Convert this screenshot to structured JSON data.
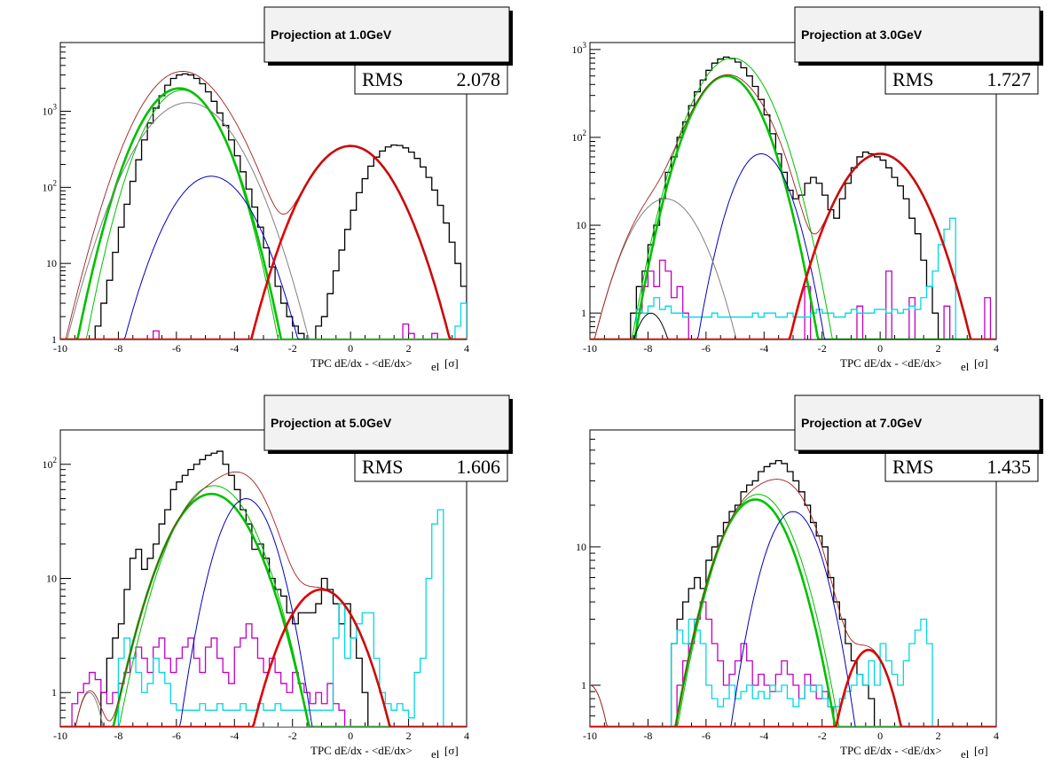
{
  "colors": {
    "data_hist": "#000000",
    "magenta_hist": "#c000c0",
    "cyan_hist": "#00d8e0",
    "total_fit": "#a02020",
    "electron_fit": "#e00000",
    "pion_fit": "#00c000",
    "kaon_fit": "#0000c0",
    "proton_fit": "#808080",
    "muon_fit": "#000000"
  },
  "xlabel_main": "TPC dE/dx - <dE/dx>",
  "xlabel_sub": "el",
  "xlabel_unit": "[σ]",
  "stats_label": "RMS",
  "chart_data": [
    {
      "type": "histogram",
      "title": "Projection at 1.0GeV",
      "rms": "2.078",
      "xlim": [
        -10,
        4
      ],
      "ylim": [
        1,
        8000
      ],
      "log_y": true,
      "xticks": [
        "-10",
        "-8",
        "-6",
        "-4",
        "-2",
        "0",
        "2",
        "4"
      ],
      "yticks": [
        {
          "v": 1,
          "label": "1"
        },
        {
          "v": 10,
          "label": "10"
        },
        {
          "v": 100,
          "label": "10^2"
        },
        {
          "v": 1000,
          "label": "10^3"
        }
      ],
      "fits": [
        {
          "name": "pion",
          "kind": "pion",
          "amp": 2000,
          "mu": -5.9,
          "sigma": 0.9,
          "thick": true
        },
        {
          "name": "pion2",
          "kind": "pion",
          "amp": 1900,
          "mu": -5.8,
          "sigma": 0.85,
          "thick": false
        },
        {
          "name": "kaon",
          "kind": "kaon",
          "amp": 140,
          "mu": -4.8,
          "sigma": 0.95
        },
        {
          "name": "proton",
          "kind": "proton",
          "amp": 1300,
          "mu": -5.6,
          "sigma": 1.1
        },
        {
          "name": "electron",
          "kind": "electron",
          "amp": 350,
          "mu": 0.0,
          "sigma": 1.0,
          "thick": true
        }
      ],
      "hist": [
        {
          "kind": "data_hist",
          "start": -8.8,
          "width": 0.2,
          "values": [
            1.5,
            3,
            6,
            14,
            30,
            60,
            120,
            230,
            420,
            700,
            1100,
            1600,
            2200,
            2700,
            3000,
            3100,
            3000,
            2700,
            2300,
            1800,
            1350,
            950,
            650,
            420,
            260,
            160,
            95,
            55,
            30,
            16,
            9,
            5,
            3,
            2,
            1.5,
            1.2,
            1,
            1,
            1.5,
            2,
            4,
            8,
            15,
            28,
            50,
            85,
            130,
            190,
            250,
            300,
            340,
            360,
            355,
            330,
            290,
            240,
            185,
            135,
            92,
            58,
            34,
            19,
            10,
            5,
            3,
            1.5
          ]
        },
        {
          "kind": "magenta_hist",
          "start": -7.4,
          "width": 0.2,
          "values": [
            0,
            0,
            0,
            1.3,
            0,
            0,
            0,
            0,
            0,
            0,
            0,
            0,
            0,
            0,
            0,
            0,
            0,
            0,
            0,
            0,
            0,
            0,
            0,
            0,
            0,
            0,
            0,
            0,
            0,
            0,
            0,
            0,
            0,
            0,
            0,
            0,
            0,
            0,
            0,
            0,
            0,
            0,
            0,
            0,
            0,
            0,
            1.6,
            1.2,
            0,
            0,
            0,
            1.2,
            0,
            0,
            0,
            0,
            0,
            0
          ]
        },
        {
          "kind": "cyan_hist",
          "start": 2.0,
          "width": 0.2,
          "values": [
            0,
            0,
            0,
            0,
            0,
            0,
            0,
            0,
            1.5,
            3
          ]
        }
      ]
    },
    {
      "type": "histogram",
      "title": "Projection at 3.0GeV",
      "rms": "1.727",
      "xlim": [
        -10,
        4
      ],
      "ylim": [
        0.5,
        1200
      ],
      "log_y": true,
      "xticks": [
        "-10",
        "-8",
        "-6",
        "-4",
        "-2",
        "0",
        "2",
        "4"
      ],
      "yticks": [
        {
          "v": 1,
          "label": "1"
        },
        {
          "v": 10,
          "label": "10"
        },
        {
          "v": 100,
          "label": "10^2"
        },
        {
          "v": 1000,
          "label": "10^3"
        }
      ],
      "fits": [
        {
          "name": "pion",
          "kind": "pion",
          "amp": 500,
          "mu": -5.3,
          "sigma": 0.85,
          "thick": true
        },
        {
          "name": "pion2",
          "kind": "pion",
          "amp": 800,
          "mu": -5.1,
          "sigma": 0.9,
          "thick": false
        },
        {
          "name": "kaon",
          "kind": "kaon",
          "amp": 65,
          "mu": -4.1,
          "sigma": 0.7
        },
        {
          "name": "proton",
          "kind": "proton",
          "amp": 20,
          "mu": -7.4,
          "sigma": 0.9
        },
        {
          "name": "muon",
          "kind": "muon",
          "amp": 1.0,
          "mu": -7.9,
          "sigma": 0.5
        },
        {
          "name": "electron",
          "kind": "electron",
          "amp": 65,
          "mu": 0.0,
          "sigma": 1.0,
          "thick": true
        }
      ],
      "hist": [
        {
          "kind": "data_hist",
          "start": -8.6,
          "width": 0.2,
          "values": [
            1,
            2,
            3,
            6,
            10,
            20,
            40,
            60,
            100,
            150,
            230,
            330,
            450,
            580,
            700,
            780,
            820,
            790,
            720,
            620,
            500,
            380,
            270,
            180,
            110,
            65,
            40,
            25,
            20,
            22,
            30,
            35,
            30,
            22,
            15,
            12,
            20,
            30,
            45,
            60,
            68,
            65,
            60,
            55,
            45,
            35,
            28,
            20,
            12,
            8,
            4,
            2,
            1
          ]
        },
        {
          "kind": "magenta_hist",
          "start": -8.4,
          "width": 0.2,
          "values": [
            1,
            2,
            3,
            2,
            4,
            3,
            1.5,
            2,
            1,
            0,
            0,
            0,
            0,
            0,
            0,
            0,
            0,
            0,
            0,
            0,
            0,
            0,
            0,
            0,
            0,
            0,
            0,
            0,
            0,
            2,
            0,
            0,
            0,
            0,
            0,
            0,
            0,
            0,
            1.2,
            0,
            0,
            0,
            0,
            3,
            0,
            0,
            0,
            1.5,
            0,
            0,
            0,
            0,
            0,
            1.2,
            0,
            0,
            0,
            0,
            0,
            0,
            1.5,
            0,
            0,
            2
          ]
        },
        {
          "kind": "cyan_hist",
          "start": -8.4,
          "width": 0.2,
          "values": [
            1.1,
            1.0,
            1.2,
            1.5,
            1.1,
            1.2,
            1.0,
            1.0,
            0.9,
            0.9,
            0.9,
            0.9,
            0.9,
            1.0,
            0.9,
            0.9,
            0.9,
            0.9,
            0.9,
            0.9,
            1.0,
            0.9,
            1.0,
            1.0,
            0.9,
            0.9,
            1.0,
            0.9,
            0.9,
            0.9,
            1.0,
            1.1,
            1.0,
            1.0,
            0.9,
            0.9,
            1.0,
            1.1,
            1.0,
            1.0,
            1.0,
            1.1,
            1.1,
            1.0,
            1.1,
            1.0,
            1.1,
            1.2,
            1.1,
            1.5,
            2,
            3,
            6,
            9,
            12
          ]
        }
      ]
    },
    {
      "type": "histogram",
      "title": "Projection at 5.0GeV",
      "rms": "1.606",
      "xlim": [
        -10,
        4
      ],
      "ylim": [
        0.5,
        200
      ],
      "log_y": true,
      "xticks": [
        "-10",
        "-8",
        "-6",
        "-4",
        "-2",
        "0",
        "2",
        "4"
      ],
      "yticks": [
        {
          "v": 1,
          "label": "1"
        },
        {
          "v": 10,
          "label": "10"
        },
        {
          "v": 100,
          "label": "10^2"
        }
      ],
      "fits": [
        {
          "name": "pion",
          "kind": "pion",
          "amp": 55,
          "mu": -4.8,
          "sigma": 1.1,
          "thick": true
        },
        {
          "name": "pion2",
          "kind": "pion",
          "amp": 65,
          "mu": -4.7,
          "sigma": 1.05,
          "thick": false
        },
        {
          "name": "kaon",
          "kind": "kaon",
          "amp": 50,
          "mu": -3.6,
          "sigma": 0.75
        },
        {
          "name": "proton",
          "kind": "proton",
          "amp": 1.0,
          "mu": -9.0,
          "sigma": 0.4
        },
        {
          "name": "electron",
          "kind": "electron",
          "amp": 8,
          "mu": -1.0,
          "sigma": 1.0,
          "thick": true
        }
      ],
      "hist": [
        {
          "kind": "data_hist",
          "start": -8.6,
          "width": 0.2,
          "values": [
            1,
            2,
            3,
            4,
            8,
            15,
            18,
            12,
            15,
            20,
            30,
            40,
            60,
            70,
            80,
            90,
            100,
            110,
            120,
            125,
            130,
            100,
            80,
            60,
            40,
            30,
            18,
            20,
            15,
            10,
            8,
            7,
            5,
            4,
            5,
            5,
            5,
            6,
            10,
            8,
            6,
            4,
            6,
            3,
            2,
            1
          ]
        },
        {
          "kind": "magenta_hist",
          "start": -9.6,
          "width": 0.2,
          "values": [
            0.8,
            1,
            1.2,
            1.5,
            1.3,
            1,
            0.8,
            1,
            1.2,
            1.5,
            2,
            2.5,
            2,
            1.5,
            2.5,
            3,
            2,
            1.5,
            2,
            2.5,
            3,
            2,
            1.5,
            2.5,
            3,
            2,
            1.5,
            1.2,
            2.5,
            3,
            4,
            3,
            2,
            1.5,
            2,
            1.5,
            1.2,
            1,
            1.5,
            1.2,
            1,
            0.8,
            1,
            0.8,
            1.2,
            0.8,
            0.7
          ]
        },
        {
          "kind": "cyan_hist",
          "start": -8.0,
          "width": 0.2,
          "values": [
            2,
            3,
            2,
            1.5,
            1,
            1.2,
            2,
            1.5,
            1.2,
            0.8,
            0.7,
            0.7,
            0.7,
            0.7,
            0.8,
            0.7,
            0.7,
            0.8,
            0.7,
            0.7,
            0.7,
            0.8,
            0.7,
            0.7,
            0.8,
            0.7,
            0.7,
            0.8,
            0.7,
            0.7,
            0.7,
            0.7,
            0.7,
            0.7,
            0.7,
            0.7,
            0.7,
            3,
            6,
            2,
            3,
            4,
            5,
            5,
            2,
            1,
            0.8,
            0.7,
            0.8,
            0.7,
            0.6,
            1.5,
            2,
            10,
            30,
            40
          ]
        }
      ]
    },
    {
      "type": "histogram",
      "title": "Projection at 7.0GeV",
      "rms": "1.435",
      "xlim": [
        -10,
        4
      ],
      "ylim": [
        0.5,
        70
      ],
      "log_y": true,
      "xticks": [
        "-10",
        "-8",
        "-6",
        "-4",
        "-2",
        "0",
        "2",
        "4"
      ],
      "yticks": [
        {
          "v": 1,
          "label": "1"
        },
        {
          "v": 10,
          "label": "10"
        }
      ],
      "fits": [
        {
          "name": "pion",
          "kind": "pion",
          "amp": 22,
          "mu": -4.3,
          "sigma": 1.0,
          "thick": true
        },
        {
          "name": "pion2",
          "kind": "pion",
          "amp": 24,
          "mu": -4.2,
          "sigma": 1.0,
          "thick": false
        },
        {
          "name": "kaon",
          "kind": "kaon",
          "amp": 18,
          "mu": -3.0,
          "sigma": 0.8
        },
        {
          "name": "proton",
          "kind": "proton",
          "amp": 1.0,
          "mu": -10.0,
          "sigma": 0.5
        },
        {
          "name": "electron",
          "kind": "electron",
          "amp": 1.8,
          "mu": -0.4,
          "sigma": 0.7,
          "thick": true
        }
      ],
      "hist": [
        {
          "kind": "data_hist",
          "start": -7.2,
          "width": 0.2,
          "values": [
            2,
            3,
            4,
            5,
            6,
            5,
            8,
            10,
            12,
            15,
            18,
            20,
            25,
            28,
            30,
            35,
            38,
            40,
            42,
            40,
            35,
            30,
            25,
            20,
            15,
            12,
            10,
            6,
            4,
            3,
            2,
            1.5,
            1.2,
            1,
            0.8
          ]
        },
        {
          "kind": "magenta_hist",
          "start": -7.0,
          "width": 0.2,
          "values": [
            1,
            1.5,
            2,
            3,
            4,
            3,
            2,
            1.5,
            1,
            1.2,
            1.5,
            2,
            1.5,
            1,
            1.2,
            1,
            0.9,
            1.2,
            1.5,
            1.2,
            1,
            0.8,
            1.2,
            1,
            0.8,
            0.9,
            0.7
          ]
        },
        {
          "kind": "cyan_hist",
          "start": -7.2,
          "width": 0.2,
          "values": [
            2,
            2.5,
            2,
            3,
            2.5,
            2,
            1,
            0.8,
            0.7,
            0.8,
            1,
            0.8,
            0.9,
            1,
            0.8,
            0.9,
            0.8,
            1,
            0.9,
            1,
            0.8,
            0.7,
            0.8,
            1,
            0.9,
            1,
            0.8,
            0.7,
            0.7,
            0.8,
            0.9,
            1,
            1.2,
            1,
            1.5,
            1,
            2,
            1.5,
            1.2,
            1,
            1.5,
            2,
            2.5,
            3,
            2
          ]
        }
      ]
    }
  ]
}
